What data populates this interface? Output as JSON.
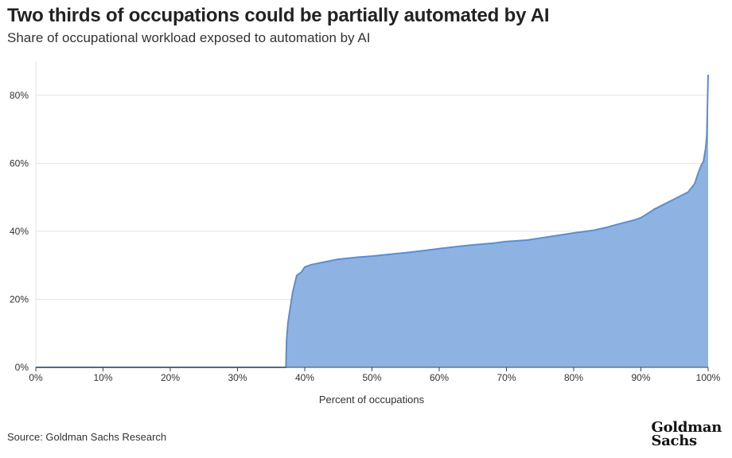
{
  "header": {
    "title": "Two thirds of occupations could be partially automated by AI",
    "subtitle": "Share of occupational workload exposed to automation by AI"
  },
  "footer": {
    "source": "Source: Goldman Sachs Research",
    "logo_line1": "Goldman",
    "logo_line2": "Sachs"
  },
  "colors": {
    "fill": "#8eb3e2",
    "line": "#5b8fd0",
    "grid": "#e4e4e4",
    "axis": "#444444",
    "text": "#333333"
  },
  "chart_data": {
    "type": "area",
    "title": "Two thirds of occupations could be partially automated by AI",
    "subtitle": "Share of occupational workload exposed to automation by AI",
    "xlabel": "Percent of occupations",
    "ylabel": "",
    "xlim": [
      0,
      100
    ],
    "ylim": [
      0,
      90
    ],
    "x_ticks": [
      0,
      10,
      20,
      30,
      40,
      50,
      60,
      70,
      80,
      90,
      100
    ],
    "x_tick_labels": [
      "0%",
      "10%",
      "20%",
      "30%",
      "40%",
      "50%",
      "60%",
      "70%",
      "80%",
      "90%",
      "100%"
    ],
    "y_ticks": [
      0,
      20,
      40,
      60,
      80
    ],
    "y_tick_labels": [
      "0%",
      "20%",
      "40%",
      "60%",
      "80%"
    ],
    "grid": true,
    "legend": "none",
    "series": [
      {
        "x": [
          0,
          37.2,
          37.3,
          37.5,
          37.8,
          38.2,
          38.8,
          39.5,
          40.0,
          41.0,
          43.0,
          45.0,
          48.0,
          50.0,
          53.0,
          55.0,
          58.0,
          60.0,
          63.0,
          65.0,
          68.0,
          70.0,
          73.0,
          75.0,
          78.0,
          80.0,
          83.0,
          85.0,
          87.0,
          89.0,
          90.0,
          91.0,
          92.0,
          93.0,
          94.0,
          95.0,
          96.0,
          97.0,
          98.0,
          98.5,
          99.0,
          99.3,
          99.6,
          99.8,
          100.0
        ],
        "y": [
          0,
          0,
          8,
          13,
          17,
          22,
          27,
          28,
          29.5,
          30.2,
          31.0,
          31.8,
          32.4,
          32.7,
          33.3,
          33.7,
          34.4,
          34.9,
          35.6,
          36.0,
          36.5,
          37.0,
          37.4,
          38.0,
          38.9,
          39.5,
          40.3,
          41.2,
          42.3,
          43.3,
          44.0,
          45.2,
          46.5,
          47.5,
          48.5,
          49.5,
          50.5,
          51.5,
          54.0,
          57.0,
          59.5,
          60.5,
          64.0,
          68.0,
          86.0
        ]
      }
    ]
  }
}
